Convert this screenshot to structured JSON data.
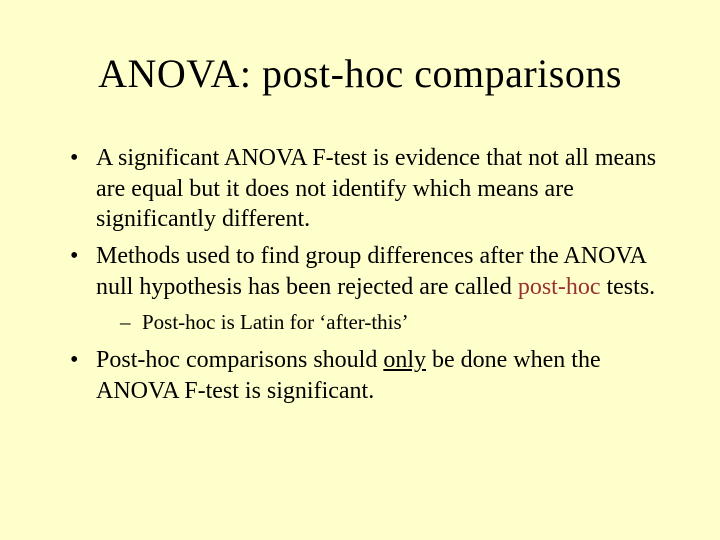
{
  "slide": {
    "background_color": "#ffffcc",
    "text_color": "#000000",
    "accent_color": "#993333",
    "font_family": "Times New Roman",
    "title": {
      "text": "ANOVA: post-hoc comparisons",
      "fontsize": 40,
      "align": "center"
    },
    "bullets": [
      {
        "fontsize": 24,
        "runs": [
          {
            "text": "A significant ANOVA F-test is evidence that not all means are equal but it does not identify which means are significantly different."
          }
        ]
      },
      {
        "fontsize": 24,
        "runs": [
          {
            "text": "Methods used to find group differences after the ANOVA null hypothesis has been rejected are called "
          },
          {
            "text": "post-hoc",
            "color": "#993333"
          },
          {
            "text": " tests."
          }
        ],
        "sub": [
          {
            "fontsize": 21,
            "runs": [
              {
                "text": "Post-hoc is Latin for ‘after-this’"
              }
            ]
          }
        ]
      },
      {
        "fontsize": 24,
        "runs": [
          {
            "text": "Post-hoc comparisons should "
          },
          {
            "text": "only",
            "underline": true
          },
          {
            "text": " be done when the ANOVA F-test is significant."
          }
        ]
      }
    ]
  }
}
